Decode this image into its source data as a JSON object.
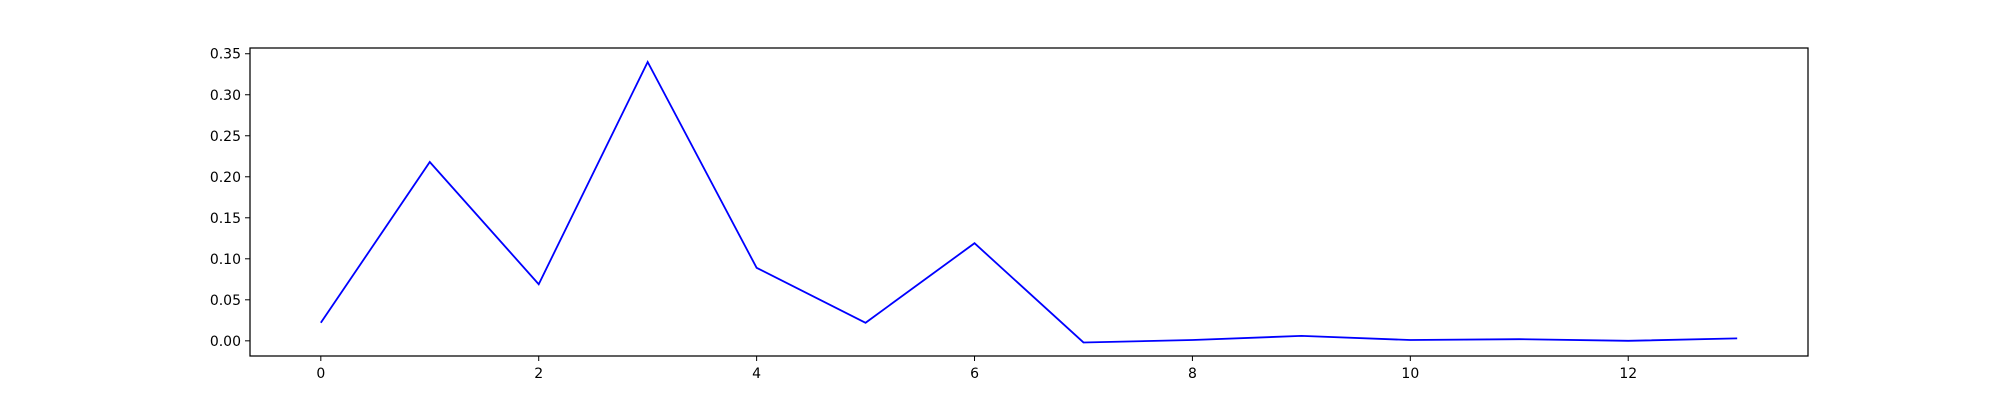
{
  "chart_data": {
    "type": "line",
    "title": "",
    "xlabel": "",
    "ylabel": "",
    "grid": false,
    "xlim": [
      -0.65,
      13.65
    ],
    "ylim": [
      -0.0185,
      0.357
    ],
    "x_ticks": [
      0,
      2,
      4,
      6,
      8,
      10,
      12
    ],
    "x_tick_labels": [
      "0",
      "2",
      "4",
      "6",
      "8",
      "10",
      "12"
    ],
    "y_ticks": [
      0,
      0.05,
      0.1,
      0.15,
      0.2,
      0.25,
      0.3,
      0.35
    ],
    "y_tick_labels": [
      "0.00",
      "0.05",
      "0.10",
      "0.15",
      "0.20",
      "0.25",
      "0.30",
      "0.35"
    ],
    "series": [
      {
        "color": "#0000ff",
        "x": [
          0,
          1,
          2,
          3,
          4,
          5,
          6,
          7,
          8,
          9,
          10,
          11,
          12,
          13
        ],
        "y": [
          0.022,
          0.218,
          0.069,
          0.34,
          0.089,
          0.022,
          0.119,
          -0.002,
          0.001,
          0.006,
          0.001,
          0.002,
          0.0,
          0.003
        ]
      }
    ]
  }
}
